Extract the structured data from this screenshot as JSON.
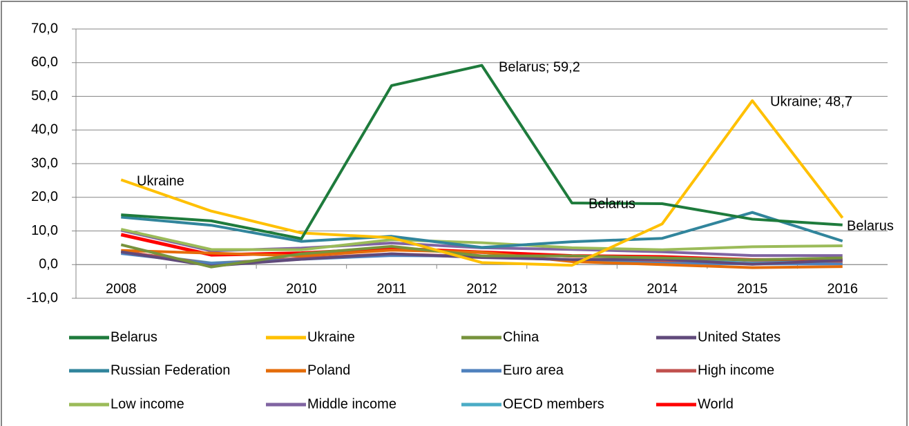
{
  "chart_data": {
    "type": "line",
    "categories": [
      "2008",
      "2009",
      "2010",
      "2011",
      "2012",
      "2013",
      "2014",
      "2015",
      "2016"
    ],
    "ylim": [
      -10,
      70
    ],
    "yticks": [
      {
        "value": -10,
        "label": "-10,0"
      },
      {
        "value": 0,
        "label": "0,0"
      },
      {
        "value": 10,
        "label": "10,0"
      },
      {
        "value": 20,
        "label": "20,0"
      },
      {
        "value": 30,
        "label": "30,0"
      },
      {
        "value": 40,
        "label": "40,0"
      },
      {
        "value": 50,
        "label": "50,0"
      },
      {
        "value": 60,
        "label": "60,0"
      },
      {
        "value": 70,
        "label": "70,0"
      }
    ],
    "grid": true,
    "legend": "bottom",
    "annotations": [
      "Ukraine",
      "Belarus; 59,2",
      "Ukraine; 48,7",
      "Belarus",
      "Belarus"
    ],
    "series": [
      {
        "name": "Belarus",
        "color": "#1e7b3c",
        "values": [
          14.8,
          13.0,
          7.7,
          53.2,
          59.2,
          18.3,
          18.1,
          13.5,
          11.8
        ]
      },
      {
        "name": "Ukraine",
        "color": "#ffc000",
        "values": [
          25.2,
          15.9,
          9.4,
          8.0,
          0.6,
          -0.2,
          12.1,
          48.7,
          13.9
        ]
      },
      {
        "name": "China",
        "color": "#77933c",
        "values": [
          5.9,
          -0.7,
          3.2,
          5.4,
          2.6,
          2.6,
          2.0,
          1.4,
          2.0
        ]
      },
      {
        "name": "United States",
        "color": "#604a7b",
        "values": [
          3.8,
          -0.4,
          1.6,
          3.2,
          2.1,
          1.5,
          1.6,
          0.1,
          1.3
        ]
      },
      {
        "name": "Russian Federation",
        "color": "#31859c",
        "values": [
          14.1,
          11.7,
          6.9,
          8.4,
          5.1,
          6.8,
          7.8,
          15.5,
          7.0
        ]
      },
      {
        "name": "Poland",
        "color": "#e46c0a",
        "values": [
          4.2,
          3.4,
          2.6,
          4.3,
          3.7,
          0.9,
          0.0,
          -0.9,
          -0.6
        ]
      },
      {
        "name": "Euro area",
        "color": "#4f81bd",
        "values": [
          3.3,
          0.3,
          1.6,
          2.7,
          2.5,
          1.3,
          0.4,
          0.2,
          0.2
        ]
      },
      {
        "name": "High income",
        "color": "#c0504d",
        "values": [
          3.9,
          0.3,
          1.9,
          3.2,
          2.4,
          1.5,
          1.0,
          0.2,
          0.6
        ]
      },
      {
        "name": "Low income",
        "color": "#9bbb59",
        "values": [
          10.5,
          4.5,
          4.4,
          7.4,
          6.5,
          5.0,
          4.4,
          5.3,
          5.6
        ]
      },
      {
        "name": "Middle income",
        "color": "#8064a2",
        "values": [
          10.2,
          4.1,
          4.9,
          6.4,
          5.0,
          4.5,
          3.8,
          2.7,
          2.7
        ]
      },
      {
        "name": "OECD members",
        "color": "#4bacc6",
        "values": [
          3.8,
          0.5,
          1.7,
          3.0,
          2.2,
          1.5,
          1.4,
          0.5,
          1.0
        ]
      },
      {
        "name": "World",
        "color": "#ff0000",
        "values": [
          8.9,
          2.9,
          3.4,
          4.8,
          3.7,
          2.6,
          2.3,
          1.4,
          1.5
        ]
      }
    ]
  }
}
